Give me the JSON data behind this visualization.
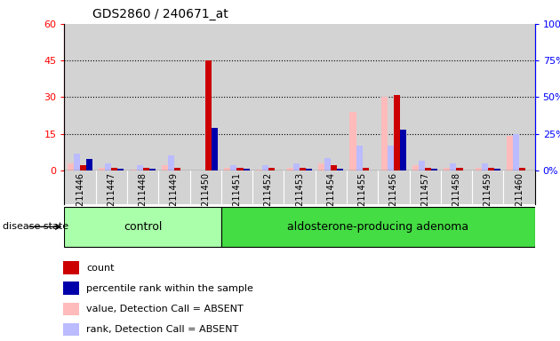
{
  "title": "GDS2860 / 240671_at",
  "samples": [
    "GSM211446",
    "GSM211447",
    "GSM211448",
    "GSM211449",
    "GSM211450",
    "GSM211451",
    "GSM211452",
    "GSM211453",
    "GSM211454",
    "GSM211455",
    "GSM211456",
    "GSM211457",
    "GSM211458",
    "GSM211459",
    "GSM211460"
  ],
  "control_indices": [
    0,
    1,
    2,
    3,
    4
  ],
  "adenoma_indices": [
    5,
    6,
    7,
    8,
    9,
    10,
    11,
    12,
    13,
    14
  ],
  "group_control_name": "control",
  "group_adenoma_name": "aldosterone-producing adenoma",
  "group_control_color": "#aaffaa",
  "group_adenoma_color": "#44dd44",
  "count": [
    2,
    1,
    1,
    1,
    45,
    1,
    1,
    1,
    2,
    1,
    31,
    1,
    1,
    1,
    1
  ],
  "percentile_rank": [
    8,
    1,
    1,
    0,
    29,
    1,
    0,
    1,
    1,
    0,
    28,
    1,
    0,
    1,
    0
  ],
  "value_absent": [
    3,
    1,
    0.5,
    2,
    0,
    1,
    0.5,
    1,
    3,
    24,
    30,
    2,
    1,
    1,
    14
  ],
  "rank_absent": [
    7,
    3,
    2,
    6,
    0,
    2,
    2,
    3,
    5,
    10,
    10,
    4,
    3,
    3,
    15
  ],
  "left_yticks": [
    0,
    15,
    30,
    45,
    60
  ],
  "right_yticks": [
    0,
    25,
    50,
    75,
    100
  ],
  "ylim_left": [
    0,
    60
  ],
  "ylim_right": [
    0,
    100
  ],
  "color_count": "#cc0000",
  "color_percentile": "#0000aa",
  "color_value_absent": "#ffbbbb",
  "color_rank_absent": "#bbbbff",
  "bg_plot": "#d3d3d3",
  "bg_figure": "#ffffff",
  "legend_items": [
    [
      "#cc0000",
      "count"
    ],
    [
      "#0000aa",
      "percentile rank within the sample"
    ],
    [
      "#ffbbbb",
      "value, Detection Call = ABSENT"
    ],
    [
      "#bbbbff",
      "rank, Detection Call = ABSENT"
    ]
  ]
}
